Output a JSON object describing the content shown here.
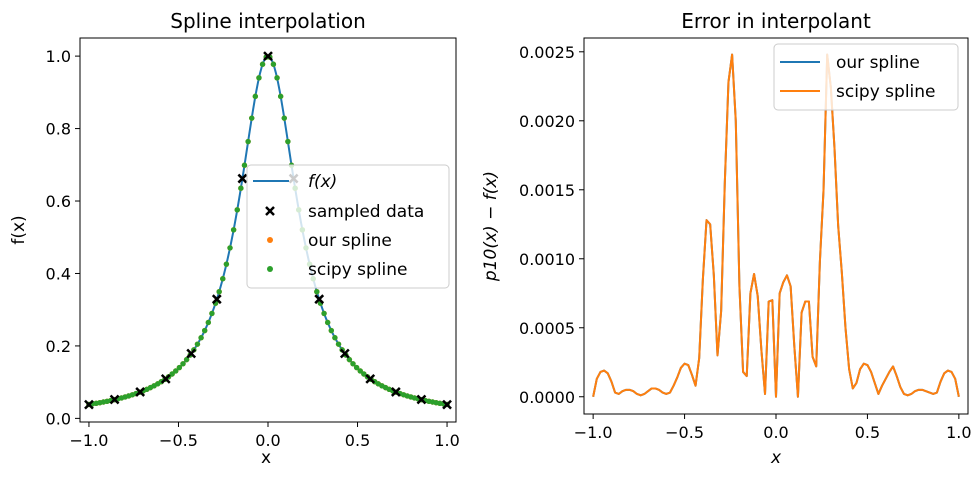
{
  "chart_data": [
    {
      "type": "line",
      "title": "Spline interpolation",
      "xlabel": "x",
      "ylabel": "f(x)",
      "xlim": [
        -1.05,
        1.05
      ],
      "ylim": [
        -0.01,
        1.05
      ],
      "xticks": [
        -1.0,
        -0.5,
        0.0,
        0.5,
        1.0
      ],
      "xtick_labels": [
        "−1.0",
        "−0.5",
        "0.0",
        "0.5",
        "1.0"
      ],
      "yticks": [
        0.0,
        0.2,
        0.4,
        0.6,
        0.8,
        1.0
      ],
      "ytick_labels": [
        "0.0",
        "0.2",
        "0.4",
        "0.6",
        "0.8",
        "1.0"
      ],
      "legend": {
        "position": "center-right",
        "entries": [
          {
            "label": "f(x)",
            "marker": "line",
            "color": "#1f77b4"
          },
          {
            "label": "sampled data",
            "marker": "x",
            "color": "#000000"
          },
          {
            "label": "our spline",
            "marker": "dot",
            "color": "#ff7f0e"
          },
          {
            "label": "scipy spline",
            "marker": "dot",
            "color": "#2ca02c"
          }
        ]
      },
      "function": "1/(1+25x^2)",
      "series": [
        {
          "name": "f(x)",
          "style": "line",
          "color": "#1f77b4",
          "x_range": [
            -1,
            1
          ],
          "points": 200
        },
        {
          "name": "sampled data",
          "style": "x",
          "color": "#000000",
          "x": [
            -1.0,
            -0.857,
            -0.714,
            -0.571,
            -0.429,
            -0.286,
            -0.143,
            0.0,
            0.143,
            0.286,
            0.429,
            0.571,
            0.714,
            0.857,
            1.0
          ],
          "y": [
            0.038,
            0.052,
            0.073,
            0.109,
            0.179,
            0.329,
            0.662,
            1.0,
            0.662,
            0.329,
            0.179,
            0.109,
            0.073,
            0.052,
            0.038
          ]
        },
        {
          "name": "our spline",
          "style": "dot",
          "color": "#ff7f0e",
          "x_range": [
            -1,
            1
          ],
          "points": 100
        },
        {
          "name": "scipy spline",
          "style": "dot",
          "color": "#2ca02c",
          "x_range": [
            -1,
            1
          ],
          "points": 100
        }
      ]
    },
    {
      "type": "line",
      "title": "Error in interpolant",
      "xlabel": "x",
      "ylabel": "p10(x) − f(x)",
      "xlim": [
        -1.05,
        1.05
      ],
      "ylim": [
        -0.000125,
        0.0026
      ],
      "xticks": [
        -1.0,
        -0.5,
        0.0,
        0.5,
        1.0
      ],
      "xtick_labels": [
        "−1.0",
        "−0.5",
        "0.0",
        "0.5",
        "1.0"
      ],
      "yticks": [
        0.0,
        0.0005,
        0.001,
        0.0015,
        0.002,
        0.0025
      ],
      "ytick_labels": [
        "0.0000",
        "0.0005",
        "0.0010",
        "0.0015",
        "0.0020",
        "0.0025"
      ],
      "legend": {
        "position": "top-right",
        "entries": [
          {
            "label": "our spline",
            "marker": "line",
            "color": "#1f77b4"
          },
          {
            "label": "scipy spline",
            "marker": "line",
            "color": "#ff7f0e"
          }
        ]
      },
      "series": [
        {
          "name": "our spline",
          "color": "#1f77b4",
          "x": [
            -1.0,
            -0.98,
            -0.96,
            -0.94,
            -0.92,
            -0.9,
            -0.88,
            -0.86,
            -0.84,
            -0.82,
            -0.8,
            -0.78,
            -0.76,
            -0.74,
            -0.72,
            -0.7,
            -0.68,
            -0.66,
            -0.64,
            -0.62,
            -0.6,
            -0.58,
            -0.56,
            -0.54,
            -0.52,
            -0.5,
            -0.48,
            -0.46,
            -0.44,
            -0.42,
            -0.4,
            -0.38,
            -0.36,
            -0.34,
            -0.32,
            -0.3,
            -0.28,
            -0.26,
            -0.24,
            -0.22,
            -0.2,
            -0.18,
            -0.16,
            -0.14,
            -0.12,
            -0.1,
            -0.08,
            -0.06,
            -0.04,
            -0.02,
            0.0,
            0.02,
            0.04,
            0.06,
            0.08,
            0.1,
            0.12,
            0.14,
            0.16,
            0.18,
            0.2,
            0.22,
            0.24,
            0.26,
            0.28,
            0.3,
            0.32,
            0.34,
            0.36,
            0.38,
            0.4,
            0.42,
            0.44,
            0.46,
            0.48,
            0.5,
            0.52,
            0.54,
            0.56,
            0.58,
            0.6,
            0.62,
            0.64,
            0.66,
            0.68,
            0.7,
            0.72,
            0.74,
            0.76,
            0.78,
            0.8,
            0.82,
            0.84,
            0.86,
            0.88,
            0.9,
            0.92,
            0.94,
            0.96,
            0.98,
            1.0
          ],
          "y": [
            0.0,
            0.00013,
            0.00018,
            0.00019,
            0.00017,
            0.00011,
            3e-05,
            2e-05,
            4e-05,
            5e-05,
            5e-05,
            4e-05,
            2e-05,
            1e-05,
            2e-05,
            4e-05,
            6e-05,
            6e-05,
            5e-05,
            3e-05,
            2e-05,
            3e-05,
            8e-05,
            0.00014,
            0.00021,
            0.00024,
            0.00023,
            0.00016,
            8e-05,
            0.00028,
            0.00085,
            0.00128,
            0.00125,
            0.00088,
            0.0003,
            0.00062,
            0.00155,
            0.00228,
            0.00248,
            0.002,
            0.0008,
            0.00018,
            0.00015,
            0.00075,
            0.00089,
            0.00073,
            0.00034,
            2e-05,
            0.00069,
            0.0007,
            0.0,
            0.00075,
            0.00083,
            0.00088,
            0.0008,
            0.00037,
            0.0,
            0.00061,
            0.00069,
            0.00069,
            0.00029,
            0.00022,
            0.00098,
            0.0015,
            0.00248,
            0.00224,
            0.0018,
            0.00124,
            0.0009,
            0.0005,
            0.0002,
            6e-05,
            0.0001,
            0.0002,
            0.00024,
            0.00023,
            0.00018,
            0.0001,
            2e-05,
            8e-05,
            0.00013,
            0.00018,
            0.00022,
            0.00015,
            7e-05,
            2e-05,
            1e-05,
            2e-05,
            4e-05,
            5e-05,
            5e-05,
            4e-05,
            3e-05,
            2e-05,
            3e-05,
            0.00011,
            0.00017,
            0.00019,
            0.00018,
            0.00013,
            0.0
          ]
        },
        {
          "name": "scipy spline",
          "color": "#ff7f0e",
          "same_as": "our spline"
        }
      ]
    }
  ]
}
